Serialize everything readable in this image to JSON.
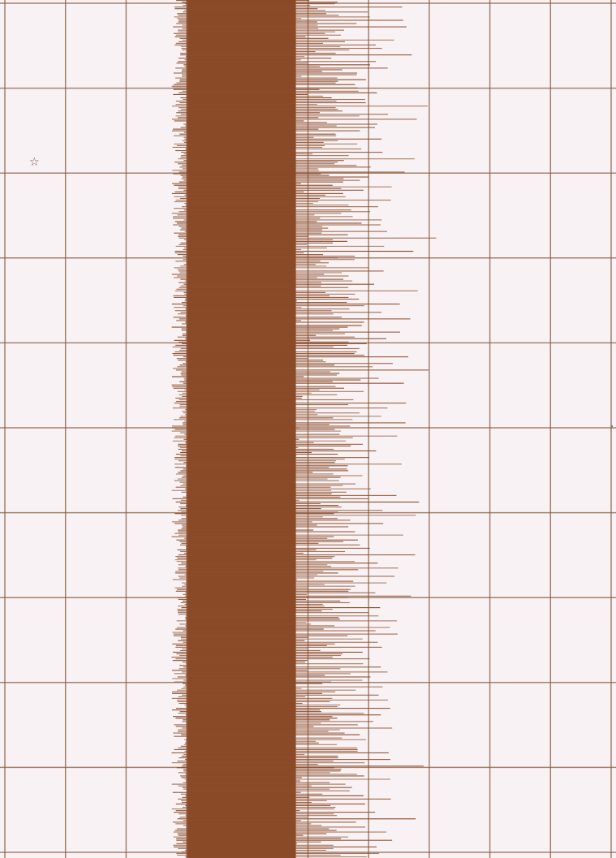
{
  "chart_data": {
    "type": "bar",
    "orientation": "horizontal",
    "series": [
      {
        "values": [
          2.1,
          2.3,
          2.8,
          2.0,
          3.4,
          2.5,
          2.2,
          3.1,
          2.6,
          2.4,
          2.9,
          2.2,
          3.3,
          2.5,
          2.7,
          2.1,
          3.6,
          2.4,
          2.8,
          2.3,
          2.6,
          3.0,
          2.2,
          2.5,
          3.4,
          2.7,
          2.3,
          2.9,
          2.4,
          3.2,
          2.6,
          2.1,
          2.8,
          3.5,
          2.4,
          2.7,
          2.2,
          3.0,
          2.5,
          2.9,
          2.3,
          3.7,
          2.6,
          2.4,
          2.8,
          3.1,
          2.2,
          2.7,
          3.3,
          2.5,
          2.4,
          2.9,
          2.1,
          3.0,
          2.6,
          2.8,
          3.4,
          2.3,
          2.5,
          2.7,
          3.2,
          2.4,
          2.9,
          2.2,
          3.8,
          2.6,
          2.5,
          2.8,
          2.3,
          3.1,
          2.7,
          2.4,
          3.5,
          2.2,
          2.6,
          2.9,
          2.5,
          3.0,
          2.3,
          2.8
        ]
      }
    ],
    "x_range": [
      0,
      10
    ],
    "grid": true,
    "gridline_count_x": 10,
    "gridline_count_y": 10,
    "colors": {
      "background": "#f8f2f4",
      "grid": "#8a5a40",
      "bar": "#8b4a28"
    }
  },
  "margin_marks": {
    "top_left": "☆",
    "right_edge": "·"
  }
}
